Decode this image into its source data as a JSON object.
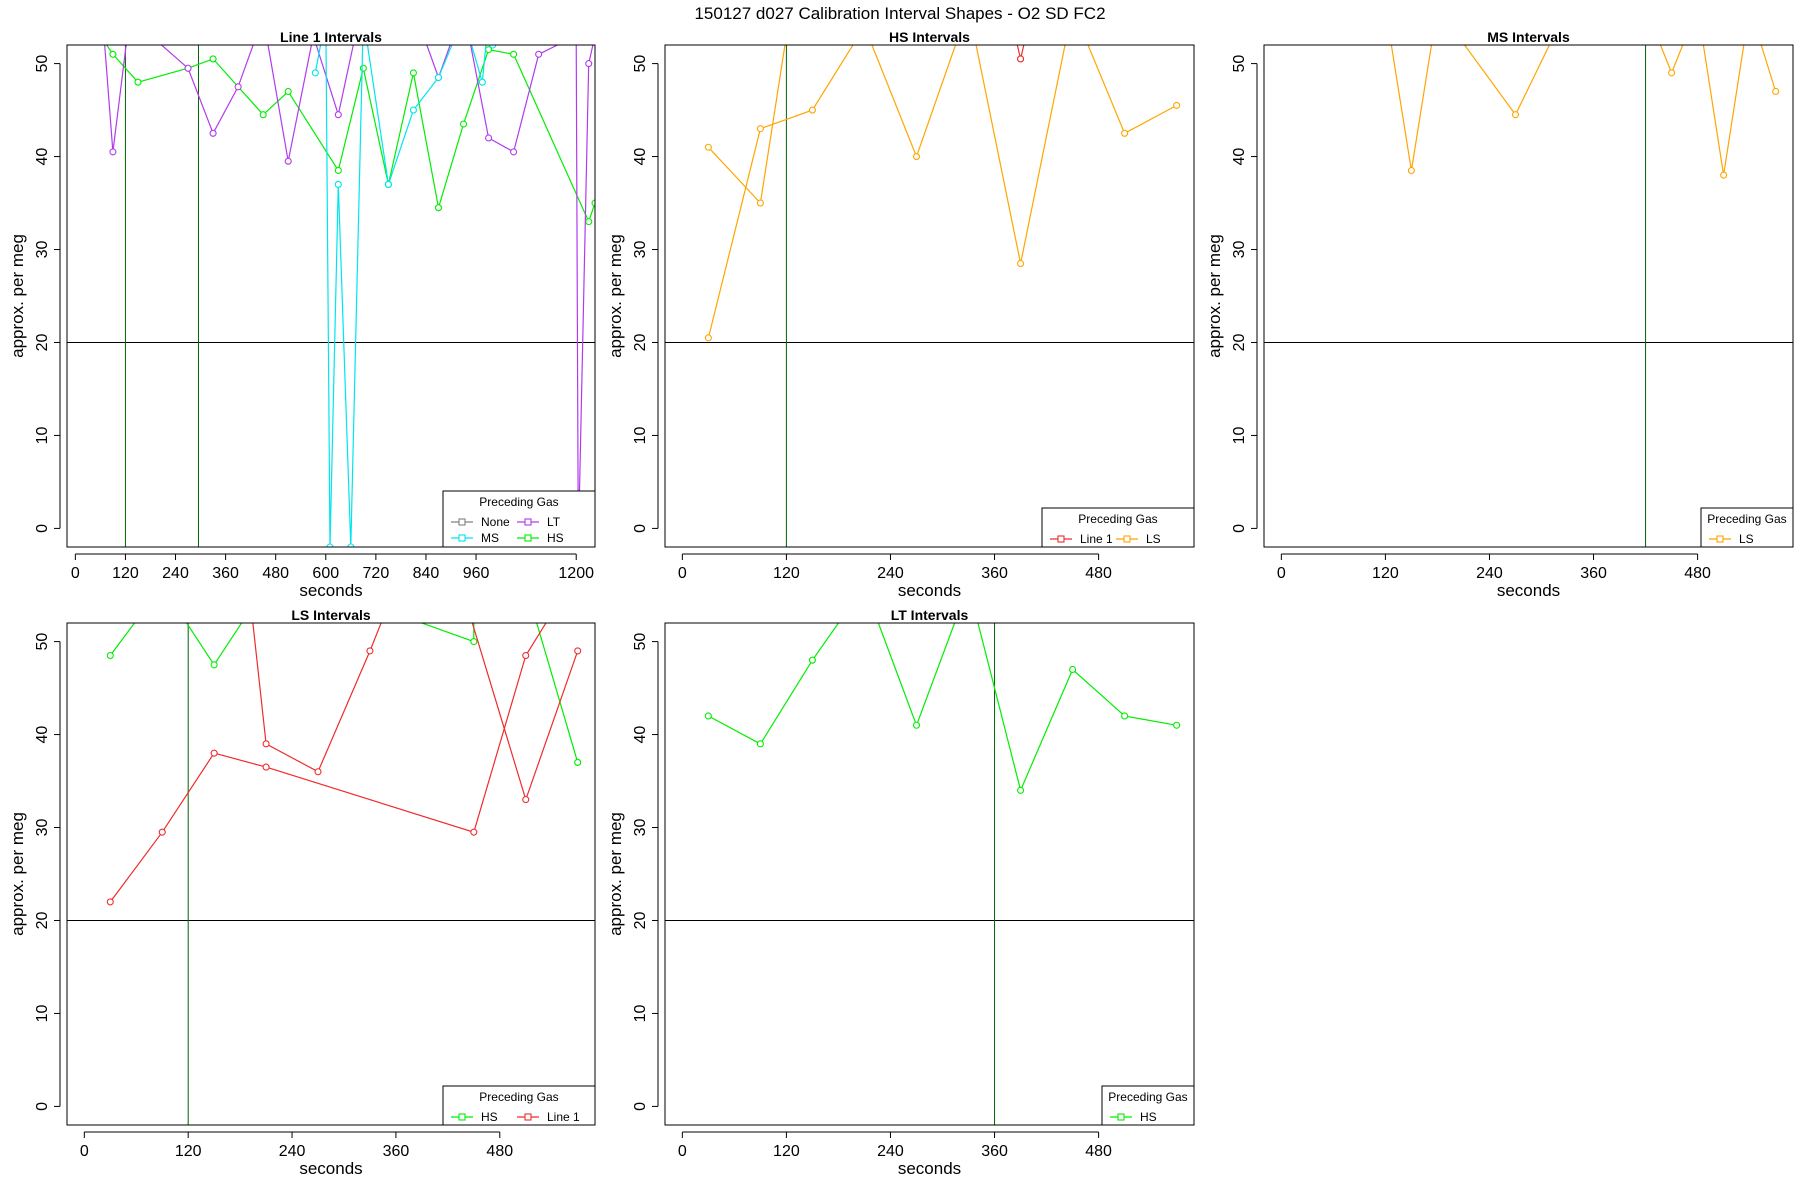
{
  "figure": {
    "title": "150127   d027   Calibration Interval Shapes - O2 SD FC2"
  },
  "colors": {
    "None": "#808080",
    "MS": "#00e5ee",
    "LT": "#b23aee",
    "HS": "#00ee00",
    "Line 1": "#ee2c2c",
    "LS": "#ffa500",
    "vline": "#006400",
    "hline": "#000000"
  },
  "chart_data": [
    {
      "type": "line",
      "title": "Line 1 Intervals",
      "xlabel": "seconds",
      "ylabel": "approx. per meg",
      "xlim": [
        -20,
        1245
      ],
      "ylim": [
        -2,
        52
      ],
      "xticks": [
        0,
        120,
        240,
        360,
        480,
        600,
        720,
        840,
        960,
        1200
      ],
      "yticks": [
        0,
        10,
        20,
        30,
        40,
        50
      ],
      "hline": 20,
      "vlines": [
        120,
        295
      ],
      "legend": {
        "title": "Preceding Gas",
        "position": "bottom-right",
        "entries": [
          "None",
          "LT",
          "MS",
          "HS"
        ],
        "ncol": 2
      },
      "series": [
        {
          "name": "HS",
          "x": [
            15,
            90,
            150,
            270,
            330,
            450,
            510,
            630,
            690,
            750,
            810,
            870,
            930,
            990,
            1050,
            1230,
            1245
          ],
          "y": [
            56,
            51,
            48,
            49.5,
            50.5,
            44.5,
            47,
            38.5,
            49.5,
            37,
            49,
            34.5,
            43.5,
            51.5,
            51,
            33,
            35
          ]
        },
        {
          "name": "LT",
          "x": [
            60,
            90,
            130,
            270,
            330,
            390,
            450,
            510,
            570,
            630,
            690,
            750,
            810,
            870,
            930,
            990,
            1050,
            1110,
            1200,
            1205,
            1230,
            1245
          ],
          "y": [
            58,
            40.5,
            55,
            49.5,
            42.5,
            47.5,
            55,
            39.5,
            53,
            44.5,
            57,
            55,
            56,
            48.5,
            56,
            42,
            40.5,
            51,
            53,
            -2,
            50,
            53
          ]
        },
        {
          "name": "MS",
          "x": [
            575,
            600,
            610,
            630,
            660,
            690,
            750,
            810,
            870,
            930,
            975,
            990,
            1000
          ],
          "y": [
            49,
            55,
            -2,
            37,
            -2,
            55,
            37,
            45,
            48.5,
            55,
            48,
            55,
            52
          ]
        }
      ]
    },
    {
      "type": "line",
      "title": "HS Intervals",
      "xlabel": "seconds",
      "ylabel": "approx. per meg",
      "xlim": [
        -20,
        590
      ],
      "ylim": [
        -2,
        52
      ],
      "xticks": [
        0,
        120,
        240,
        360,
        480
      ],
      "yticks": [
        0,
        10,
        20,
        30,
        40,
        50
      ],
      "hline": 20,
      "vlines": [
        120
      ],
      "legend": {
        "title": "Preceding Gas",
        "position": "bottom-right",
        "entries": [
          "Line 1",
          "LS"
        ],
        "ncol": 2
      },
      "series": [
        {
          "name": "LS",
          "x": [
            30,
            90,
            150,
            210,
            270,
            330,
            390,
            450,
            510,
            570
          ],
          "y": [
            20.5,
            43,
            45,
            54,
            40,
            56,
            28.5,
            56,
            42.5,
            45.5
          ]
        },
        {
          "name": "LS",
          "x": [
            30,
            90,
            120,
            150
          ],
          "y": [
            41,
            35,
            53,
            56
          ]
        },
        {
          "name": "Line 1",
          "x": [
            385,
            390,
            395
          ],
          "y": [
            52.5,
            50.5,
            52.5
          ]
        }
      ]
    },
    {
      "type": "line",
      "title": "MS Intervals",
      "xlabel": "seconds",
      "ylabel": "approx. per meg",
      "xlim": [
        -20,
        590
      ],
      "ylim": [
        -2,
        52
      ],
      "xticks": [
        0,
        120,
        240,
        360,
        480
      ],
      "yticks": [
        0,
        10,
        20,
        30,
        40,
        50
      ],
      "hline": 20,
      "vlines": [
        420
      ],
      "legend": {
        "title": "Preceding Gas",
        "position": "bottom-right",
        "entries": [
          "LS"
        ],
        "ncol": 1
      },
      "series": [
        {
          "name": "LS",
          "x": [
            120,
            150,
            180,
            270,
            330,
            420,
            450,
            480,
            510,
            540,
            570
          ],
          "y": [
            56,
            38.5,
            56,
            44.5,
            56,
            56,
            49,
            56,
            38,
            56,
            47
          ]
        }
      ]
    },
    {
      "type": "line",
      "title": "LS Intervals",
      "xlabel": "seconds",
      "ylabel": "approx. per meg",
      "xlim": [
        -20,
        590
      ],
      "ylim": [
        -2,
        52
      ],
      "xticks": [
        0,
        120,
        240,
        360,
        480
      ],
      "yticks": [
        0,
        10,
        20,
        30,
        40,
        50
      ],
      "hline": 20,
      "vlines": [
        120
      ],
      "legend": {
        "title": "Preceding Gas",
        "position": "bottom-right",
        "entries": [
          "HS",
          "Line 1"
        ],
        "ncol": 2
      },
      "series": [
        {
          "name": "HS",
          "x": [
            30,
            90,
            150,
            210,
            270,
            450,
            450,
            510,
            570
          ],
          "y": [
            48.5,
            56,
            47.5,
            56,
            56,
            50,
            53,
            56,
            37
          ]
        },
        {
          "name": "Line 1",
          "x": [
            30,
            90,
            150,
            210,
            450,
            510,
            560
          ],
          "y": [
            22,
            29.5,
            38,
            36.5,
            29.5,
            48.5,
            56
          ]
        },
        {
          "name": "Line 1",
          "x": [
            190,
            210,
            270,
            330,
            360
          ],
          "y": [
            56,
            39,
            36,
            49,
            56
          ]
        },
        {
          "name": "Line 1",
          "x": [
            445,
            510,
            570
          ],
          "y": [
            53,
            33,
            49
          ]
        }
      ]
    },
    {
      "type": "line",
      "title": "LT Intervals",
      "xlabel": "seconds",
      "ylabel": "approx. per meg",
      "xlim": [
        -20,
        590
      ],
      "ylim": [
        -2,
        52
      ],
      "xticks": [
        0,
        120,
        240,
        360,
        480
      ],
      "yticks": [
        0,
        10,
        20,
        30,
        40,
        50
      ],
      "hline": 20,
      "vlines": [
        360
      ],
      "legend": {
        "title": "Preceding Gas",
        "position": "bottom-right",
        "entries": [
          "HS"
        ],
        "ncol": 1
      },
      "series": [
        {
          "name": "HS",
          "x": [
            30,
            90,
            150,
            210,
            270,
            330,
            390,
            450,
            510,
            570
          ],
          "y": [
            42,
            39,
            48,
            56,
            41,
            56,
            34,
            47,
            42,
            41
          ]
        }
      ]
    }
  ]
}
